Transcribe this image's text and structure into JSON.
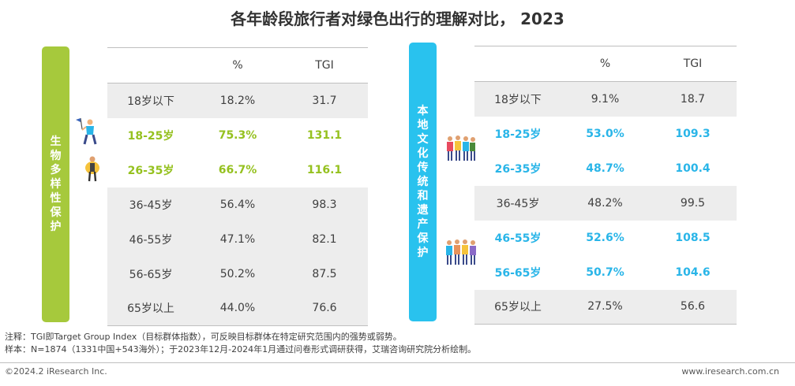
{
  "title": "各年龄段旅行者对绿色出行的理解对比， 2023",
  "colors": {
    "green": "#a6c93c",
    "blue": "#29c2ee",
    "highlight_green": "#95c11f",
    "highlight_blue": "#29b5e8",
    "shade": "#ededed"
  },
  "chart_data": [
    {
      "type": "table",
      "category_label": "生物多样性保护",
      "columns": [
        "",
        "%",
        "TGI"
      ],
      "rows": [
        {
          "age": "18岁以下",
          "pct": "18.2%",
          "tgi": "31.7",
          "highlight": false
        },
        {
          "age": "18-25岁",
          "pct": "75.3%",
          "tgi": "131.1",
          "highlight": true
        },
        {
          "age": "26-35岁",
          "pct": "66.7%",
          "tgi": "116.1",
          "highlight": true
        },
        {
          "age": "36-45岁",
          "pct": "56.4%",
          "tgi": "98.3",
          "highlight": false
        },
        {
          "age": "46-55岁",
          "pct": "47.1%",
          "tgi": "82.1",
          "highlight": false
        },
        {
          "age": "56-65岁",
          "pct": "50.2%",
          "tgi": "87.5",
          "highlight": false
        },
        {
          "age": "65岁以上",
          "pct": "44.0%",
          "tgi": "76.6",
          "highlight": false
        }
      ]
    },
    {
      "type": "table",
      "category_label": "本地文化传统和遗产保护",
      "columns": [
        "",
        "%",
        "TGI"
      ],
      "rows": [
        {
          "age": "18岁以下",
          "pct": "9.1%",
          "tgi": "18.7",
          "highlight": false
        },
        {
          "age": "18-25岁",
          "pct": "53.0%",
          "tgi": "109.3",
          "highlight": true
        },
        {
          "age": "26-35岁",
          "pct": "48.7%",
          "tgi": "100.4",
          "highlight": true
        },
        {
          "age": "36-45岁",
          "pct": "48.2%",
          "tgi": "99.5",
          "highlight": false
        },
        {
          "age": "46-55岁",
          "pct": "52.6%",
          "tgi": "108.5",
          "highlight": true
        },
        {
          "age": "56-65岁",
          "pct": "50.7%",
          "tgi": "104.6",
          "highlight": true
        },
        {
          "age": "65岁以上",
          "pct": "27.5%",
          "tgi": "56.6",
          "highlight": false
        }
      ]
    }
  ],
  "notes": {
    "line1": "注释：TGI即Target Group Index（目标群体指数），可反映目标群体在特定研究范围内的强势或弱势。",
    "line2": "样本：N=1874（1331中国+543海外）；于2023年12月-2024年1月通过问卷形式调研获得，艾瑞咨询研究院分析绘制。"
  },
  "footer": {
    "copyright": "©2024.2 iResearch Inc.",
    "url": "www.iresearch.com.cn"
  }
}
